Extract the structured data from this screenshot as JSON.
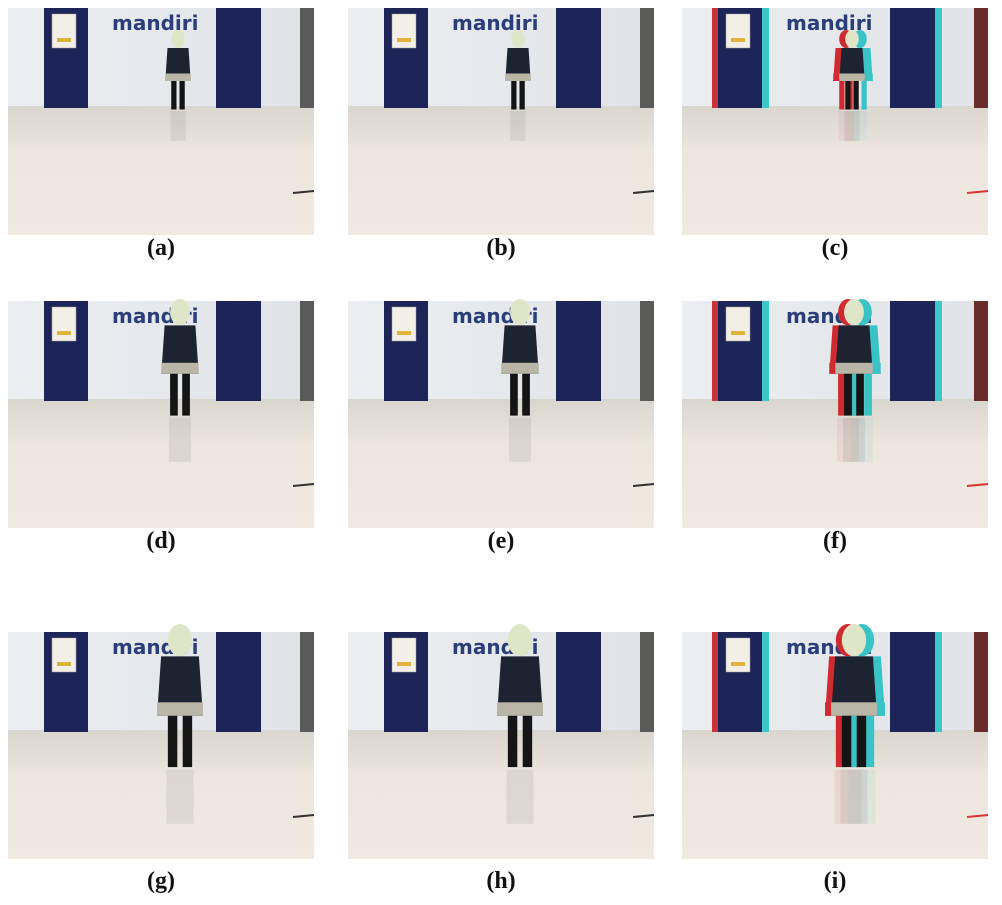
{
  "sign_text": "mandiri",
  "panels": [
    "(a)",
    "(b)",
    "(c)",
    "(d)",
    "(e)",
    "(f)",
    "(g)",
    "(h)",
    "(i)"
  ]
}
